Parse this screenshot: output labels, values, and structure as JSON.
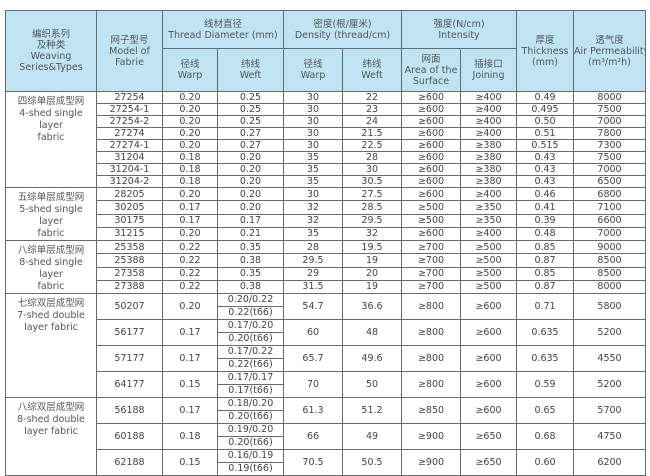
{
  "headers": {
    "series": [
      "编织系列",
      "及种类",
      "Weaving",
      "Series&Types"
    ],
    "model": [
      "网子型号",
      "Model of",
      "Fabrie"
    ],
    "thread_diameter": [
      "线材直径",
      "Thread Diameter (mm)"
    ],
    "density": [
      "密度(根/厘米)",
      "Density (thread/cm)"
    ],
    "intensity": [
      "强度(N/cm)",
      "Intensity"
    ],
    "thickness": [
      "厚度",
      "Thickness",
      "(mm)"
    ],
    "air_permeability": [
      "透气度",
      "Air Permeability",
      "(m³/m²h)"
    ],
    "warp": [
      "径线",
      "Warp"
    ],
    "weft": [
      "纬线",
      "Weft"
    ],
    "surface": [
      "网面",
      "Area of the",
      "Surface"
    ],
    "joining": [
      "插接口",
      "Joining"
    ]
  },
  "groups": [
    {
      "label": [
        "四综单层成型网",
        "4-shed single layer",
        "fabric"
      ],
      "double": false,
      "rows": [
        [
          "27254",
          "0.20",
          "0.25",
          "30",
          "22",
          "≥600",
          "≥400",
          "0.49",
          "8000"
        ],
        [
          "27254-1",
          "0.20",
          "0.25",
          "30",
          "23",
          "≥600",
          "≥400",
          "0.495",
          "7500"
        ],
        [
          "27254-2",
          "0.20",
          "0.25",
          "30",
          "24",
          "≥600",
          "≥400",
          "0.50",
          "7000"
        ],
        [
          "27274",
          "0.20",
          "0.27",
          "30",
          "21.5",
          "≥600",
          "≥400",
          "0.51",
          "7800"
        ],
        [
          "27274-1",
          "0.20",
          "0.27",
          "30",
          "22.5",
          "≥600",
          "≥380",
          "0.515",
          "7300"
        ],
        [
          "31204",
          "0.18",
          "0.20",
          "35",
          "28",
          "≥600",
          "≥380",
          "0.43",
          "7500"
        ],
        [
          "31204-1",
          "0.18",
          "0.20",
          "35",
          "30",
          "≥600",
          "≥380",
          "0.43",
          "7000"
        ],
        [
          "31204-2",
          "0.18",
          "0.20",
          "35",
          "30.5",
          "≥600",
          "≥380",
          "0.43",
          "6500"
        ]
      ]
    },
    {
      "label": [
        "五综单层成型网",
        "5-shed single layer",
        "fabric"
      ],
      "double": false,
      "rows": [
        [
          "28205",
          "0.20",
          "0.20",
          "30",
          "27.5",
          "≥600",
          "≥400",
          "0.46",
          "6800"
        ],
        [
          "30205",
          "0.17",
          "0.20",
          "32",
          "28.5",
          "≥500",
          "≥350",
          "0.41",
          "7100"
        ],
        [
          "30175",
          "0.17",
          "0.17",
          "32",
          "29.5",
          "≥500",
          "≥350",
          "0.39",
          "6600"
        ],
        [
          "31215",
          "0.20",
          "0.21",
          "35",
          "32",
          "≥600",
          "≥400",
          "0.48",
          "7000"
        ]
      ]
    },
    {
      "label": [
        "八综单层成型网",
        "8-shed single layer",
        "fabric"
      ],
      "double": false,
      "rows": [
        [
          "25358",
          "0.22",
          "0.35",
          "28",
          "19.5",
          "≥700",
          "≥500",
          "0.85",
          "9000"
        ],
        [
          "25388",
          "0.22",
          "0.38",
          "29.5",
          "19",
          "≥700",
          "≥500",
          "0.87",
          "8500"
        ],
        [
          "27358",
          "0.22",
          "0.35",
          "29",
          "20",
          "≥700",
          "≥500",
          "0.85",
          "8500"
        ],
        [
          "27388",
          "0.22",
          "0.38",
          "31.5",
          "19",
          "≥700",
          "≥500",
          "0.87",
          "8000"
        ]
      ]
    },
    {
      "label": [
        "七综双层成型网",
        "7-shed double",
        "layer fabric"
      ],
      "double": true,
      "rows": [
        [
          "50207",
          "0.20",
          [
            "0.20/0.22",
            "0.22(t66)"
          ],
          "54.7",
          "36.6",
          "≥800",
          "≥600",
          "0.71",
          "5800"
        ],
        [
          "56177",
          "0.17",
          [
            "0.17/0.20",
            "0.20(t66)"
          ],
          "60",
          "48",
          "≥800",
          "≥600",
          "0.635",
          "5200"
        ],
        [
          "57177",
          "0.17",
          [
            "0.17/0.22",
            "0.22(t66)"
          ],
          "65.7",
          "49.6",
          "≥800",
          "≥600",
          "0.635",
          "4550"
        ],
        [
          "64177",
          "0.15",
          [
            "0.17/0.17",
            "0.17(t66)"
          ],
          "70",
          "50",
          "≥800",
          "≥600",
          "0.59",
          "5200"
        ]
      ]
    },
    {
      "label": [
        "八综双层成型网",
        "8-shed double",
        "layer fabric"
      ],
      "double": true,
      "rows": [
        [
          "56188",
          "0.17",
          [
            "0.18/0.20",
            "0.20(t66)"
          ],
          "61.3",
          "51.2",
          "≥850",
          "≥600",
          "0.65",
          "5700"
        ],
        [
          "60188",
          "0.18",
          [
            "0.19/0.20",
            "0.20(t66)"
          ],
          "66",
          "49",
          "≥900",
          "≥650",
          "0.68",
          "4750"
        ],
        [
          "62188",
          "0.15",
          [
            "0.16/0.19",
            "0.19(t66)"
          ],
          "70.5",
          "50.5",
          "≥900",
          "≥650",
          "0.60",
          "6200"
        ]
      ]
    }
  ],
  "colors": {
    "header_bg": "#bfe4f3",
    "border": "#6a6a6a",
    "text": "#444444"
  }
}
